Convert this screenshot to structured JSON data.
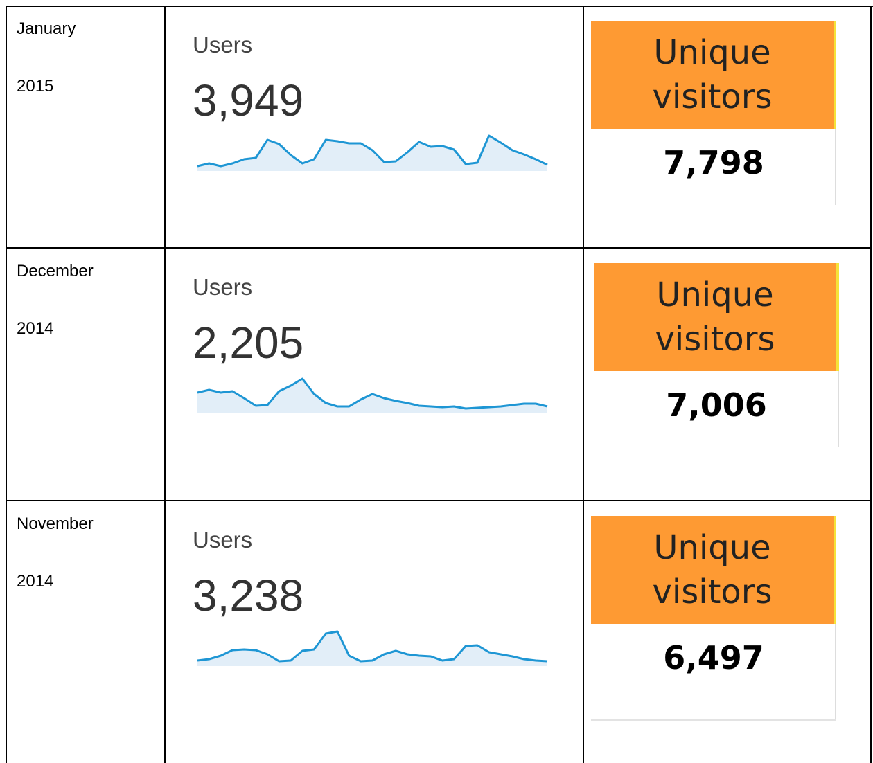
{
  "rows": [
    {
      "month": "January",
      "year": "2015",
      "users_label": "Users",
      "users": "3,949",
      "sparkline": [
        14,
        22,
        14,
        22,
        34,
        38,
        90,
        78,
        46,
        22,
        34,
        90,
        86,
        80,
        80,
        60,
        26,
        28,
        54,
        84,
        70,
        72,
        62,
        20,
        24,
        102,
        82,
        60,
        48,
        34,
        18
      ],
      "visitors_label": "Unique visitors",
      "visitors": "7,798"
    },
    {
      "month": "December",
      "year": "2014",
      "users_label": "Users",
      "users": "2,205",
      "sparkline": [
        60,
        68,
        60,
        64,
        44,
        22,
        24,
        64,
        80,
        100,
        56,
        30,
        20,
        20,
        40,
        56,
        44,
        36,
        30,
        22,
        20,
        18,
        20,
        14,
        16,
        18,
        20,
        24,
        28,
        28,
        20
      ],
      "visitors_label": "Unique visitors",
      "visitors": "7,006"
    },
    {
      "month": "November",
      "year": "2014",
      "users_label": "Users",
      "users": "3,238",
      "sparkline": [
        16,
        20,
        30,
        46,
        48,
        46,
        34,
        14,
        16,
        44,
        48,
        94,
        100,
        30,
        14,
        16,
        34,
        44,
        34,
        30,
        28,
        16,
        20,
        58,
        60,
        40,
        34,
        28,
        20,
        16,
        14
      ],
      "visitors_label": "Unique visitors",
      "visitors": "6,497"
    }
  ]
}
